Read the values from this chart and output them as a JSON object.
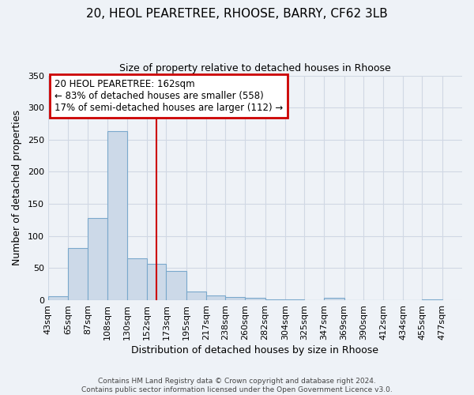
{
  "title_line1": "20, HEOL PEARETREE, RHOOSE, BARRY, CF62 3LB",
  "title_line2": "Size of property relative to detached houses in Rhoose",
  "xlabel": "Distribution of detached houses by size in Rhoose",
  "ylabel": "Number of detached properties",
  "bar_left_edges": [
    43,
    65,
    87,
    108,
    130,
    152,
    173,
    195,
    217,
    238,
    260,
    282,
    304,
    325,
    347,
    369,
    390,
    412,
    434,
    455
  ],
  "bar_heights": [
    6,
    81,
    128,
    263,
    65,
    57,
    45,
    14,
    7,
    5,
    4,
    1,
    1,
    0,
    4,
    0,
    0,
    0,
    0,
    1
  ],
  "bar_widths": [
    22,
    22,
    21,
    22,
    22,
    21,
    22,
    22,
    21,
    22,
    22,
    22,
    21,
    22,
    22,
    21,
    22,
    22,
    21,
    22
  ],
  "tick_labels": [
    "43sqm",
    "65sqm",
    "87sqm",
    "108sqm",
    "130sqm",
    "152sqm",
    "173sqm",
    "195sqm",
    "217sqm",
    "238sqm",
    "260sqm",
    "282sqm",
    "304sqm",
    "325sqm",
    "347sqm",
    "369sqm",
    "390sqm",
    "412sqm",
    "434sqm",
    "455sqm",
    "477sqm"
  ],
  "tick_positions": [
    43,
    65,
    87,
    108,
    130,
    152,
    173,
    195,
    217,
    238,
    260,
    282,
    304,
    325,
    347,
    369,
    390,
    412,
    434,
    455,
    477
  ],
  "ylim": [
    0,
    350
  ],
  "yticks": [
    0,
    50,
    100,
    150,
    200,
    250,
    300,
    350
  ],
  "xlim_left": 43,
  "xlim_right": 499,
  "vline_x": 162,
  "vline_color": "#cc0000",
  "bar_facecolor": "#ccd9e8",
  "bar_edgecolor": "#7aa8cc",
  "annotation_title": "20 HEOL PEARETREE: 162sqm",
  "annotation_line2": "← 83% of detached houses are smaller (558)",
  "annotation_line3": "17% of semi-detached houses are larger (112) →",
  "annotation_box_color": "#cc0000",
  "annotation_box_facecolor": "#ffffff",
  "footer_line1": "Contains HM Land Registry data © Crown copyright and database right 2024.",
  "footer_line2": "Contains public sector information licensed under the Open Government Licence v3.0.",
  "background_color": "#eef2f7",
  "grid_color": "#d0d8e4",
  "fig_width": 6.0,
  "fig_height": 5.0,
  "title1_fontsize": 11,
  "title2_fontsize": 9,
  "xlabel_fontsize": 9,
  "ylabel_fontsize": 9,
  "tick_fontsize": 8,
  "annot_fontsize": 8.5,
  "footer_fontsize": 6.5
}
